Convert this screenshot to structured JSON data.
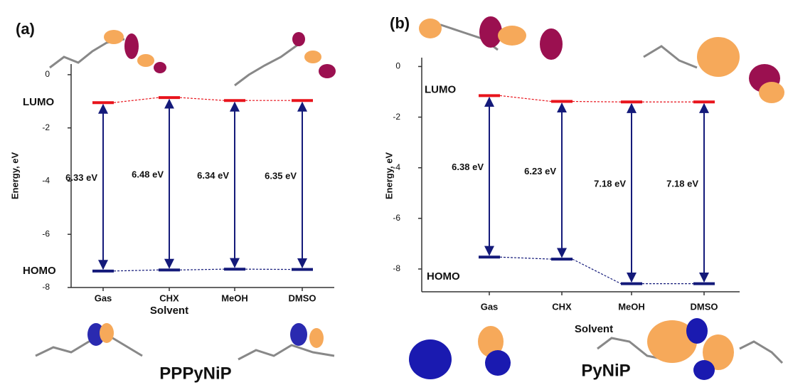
{
  "chart_data": [
    {
      "type": "energy-level",
      "panel": "(a)",
      "molecule": "PPPyNiP",
      "xlabel": "Solvent",
      "ylabel": "Energy, eV",
      "categories": [
        "Gas",
        "CHX",
        "MeOH",
        "DMSO"
      ],
      "series": [
        {
          "name": "LUMO",
          "color": "#e8141c",
          "values": [
            -1.05,
            -0.86,
            -0.97,
            -0.97
          ]
        },
        {
          "name": "HOMO",
          "color": "#141a7a",
          "values": [
            -7.38,
            -7.34,
            -7.31,
            -7.32
          ]
        }
      ],
      "gap_labels": [
        "6.33 eV",
        "6.48 eV",
        "6.34 eV",
        "6.35 eV"
      ],
      "arrow_color": "#141a7a",
      "ylim": [
        -8,
        0.4
      ],
      "yticks": [
        0,
        -2,
        -4,
        -6,
        -8
      ]
    },
    {
      "type": "energy-level",
      "panel": "(b)",
      "molecule": "PyNiP",
      "xlabel": "Solvent",
      "ylabel": "Energy, eV",
      "categories": [
        "Gas",
        "CHX",
        "MeOH",
        "DMSO"
      ],
      "series": [
        {
          "name": "LUMO",
          "color": "#e8141c",
          "values": [
            -1.15,
            -1.38,
            -1.4,
            -1.4
          ]
        },
        {
          "name": "HOMO",
          "color": "#141a7a",
          "values": [
            -7.53,
            -7.61,
            -8.58,
            -8.58
          ]
        }
      ],
      "gap_labels": [
        "6.38 eV",
        "6.23 eV",
        "7.18 eV",
        "7.18 eV"
      ],
      "arrow_color": "#141a7a",
      "ylim": [
        -8.9,
        0.35
      ],
      "yticks": [
        0,
        -2,
        -4,
        -6,
        -8
      ]
    }
  ]
}
